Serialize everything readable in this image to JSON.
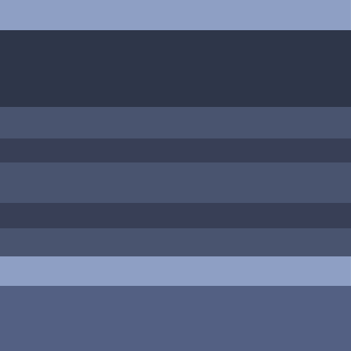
{
  "colors": {
    "top_bar": "#8e9fc4",
    "header": "#2e3649",
    "row": "#49546f",
    "separator": "#383f56",
    "accent_bar": "#8e9fc4",
    "footer": "#536083"
  }
}
